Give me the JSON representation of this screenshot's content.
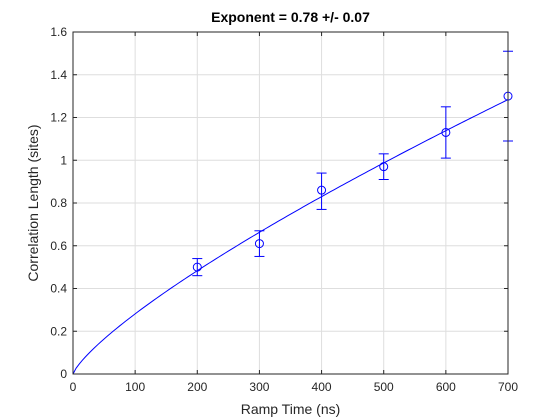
{
  "chart_data": {
    "type": "scatter",
    "title": "Exponent = 0.78 +/- 0.07",
    "xlabel": "Ramp Time (ns)",
    "ylabel": "Correlation Length (sites)",
    "xlim": [
      0,
      700
    ],
    "ylim": [
      0,
      1.6
    ],
    "xticks": [
      0,
      100,
      200,
      300,
      400,
      500,
      600,
      700
    ],
    "yticks": [
      0,
      0.2,
      0.4,
      0.6,
      0.8,
      1,
      1.2,
      1.4,
      1.6
    ],
    "xtick_labels": [
      "0",
      "100",
      "200",
      "300",
      "400",
      "500",
      "600",
      "700"
    ],
    "ytick_labels": [
      "0",
      "0.2",
      "0.4",
      "0.6",
      "0.8",
      "1",
      "1.2",
      "1.4",
      "1.6"
    ],
    "grid": true,
    "series": [
      {
        "kind": "errorbar",
        "marker": "open-circle",
        "x": [
          200,
          300,
          400,
          500,
          600,
          700
        ],
        "y": [
          0.5,
          0.61,
          0.86,
          0.97,
          1.13,
          1.3
        ],
        "y_err_low": [
          0.04,
          0.06,
          0.09,
          0.06,
          0.12,
          0.21
        ],
        "y_err_high": [
          0.04,
          0.06,
          0.08,
          0.06,
          0.12,
          0.21
        ]
      },
      {
        "kind": "fit-line",
        "function": "power-law",
        "exponent": 0.78,
        "coefficient": 0.00775,
        "x_range": [
          0,
          700
        ]
      }
    ],
    "colors": {
      "series": "#0000ff",
      "grid": "#dedede",
      "axis": "#262626"
    }
  }
}
